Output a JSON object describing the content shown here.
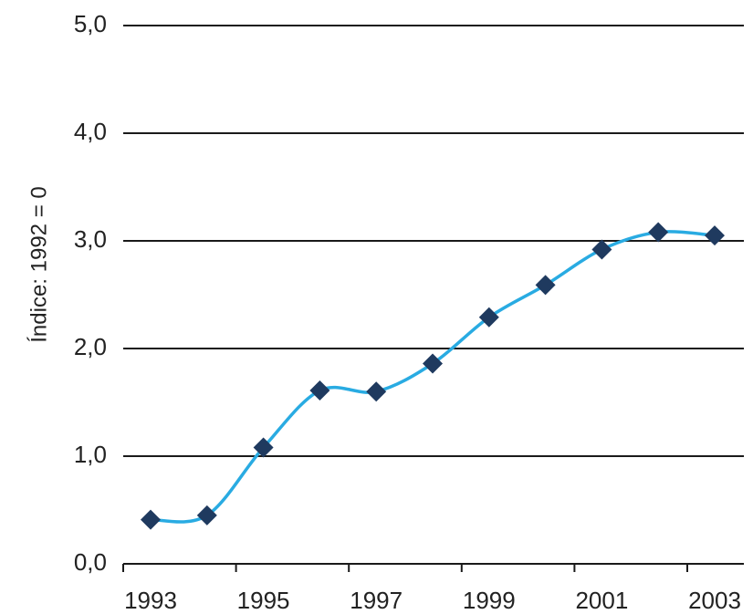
{
  "chart_data": {
    "type": "line",
    "title": "",
    "xlabel": "",
    "ylabel": "Índice: 1992 = 0",
    "ylim": [
      0,
      5
    ],
    "y_ticks": [
      "0,0",
      "1,0",
      "2,0",
      "3,0",
      "4,0",
      "5,0"
    ],
    "x_tick_labels": [
      "1993",
      "1995",
      "1997",
      "1999",
      "2001",
      "2003"
    ],
    "grid": "horizontal",
    "series": [
      {
        "color": "#29abe2",
        "marker_color": "#1f3a5f",
        "x": [
          1993,
          1994,
          1995,
          1996,
          1997,
          1998,
          1999,
          2000,
          2001,
          2002,
          2003
        ],
        "values": [
          0.41,
          0.45,
          1.08,
          1.61,
          1.6,
          1.86,
          2.29,
          2.59,
          2.92,
          3.08,
          3.05
        ]
      }
    ]
  }
}
